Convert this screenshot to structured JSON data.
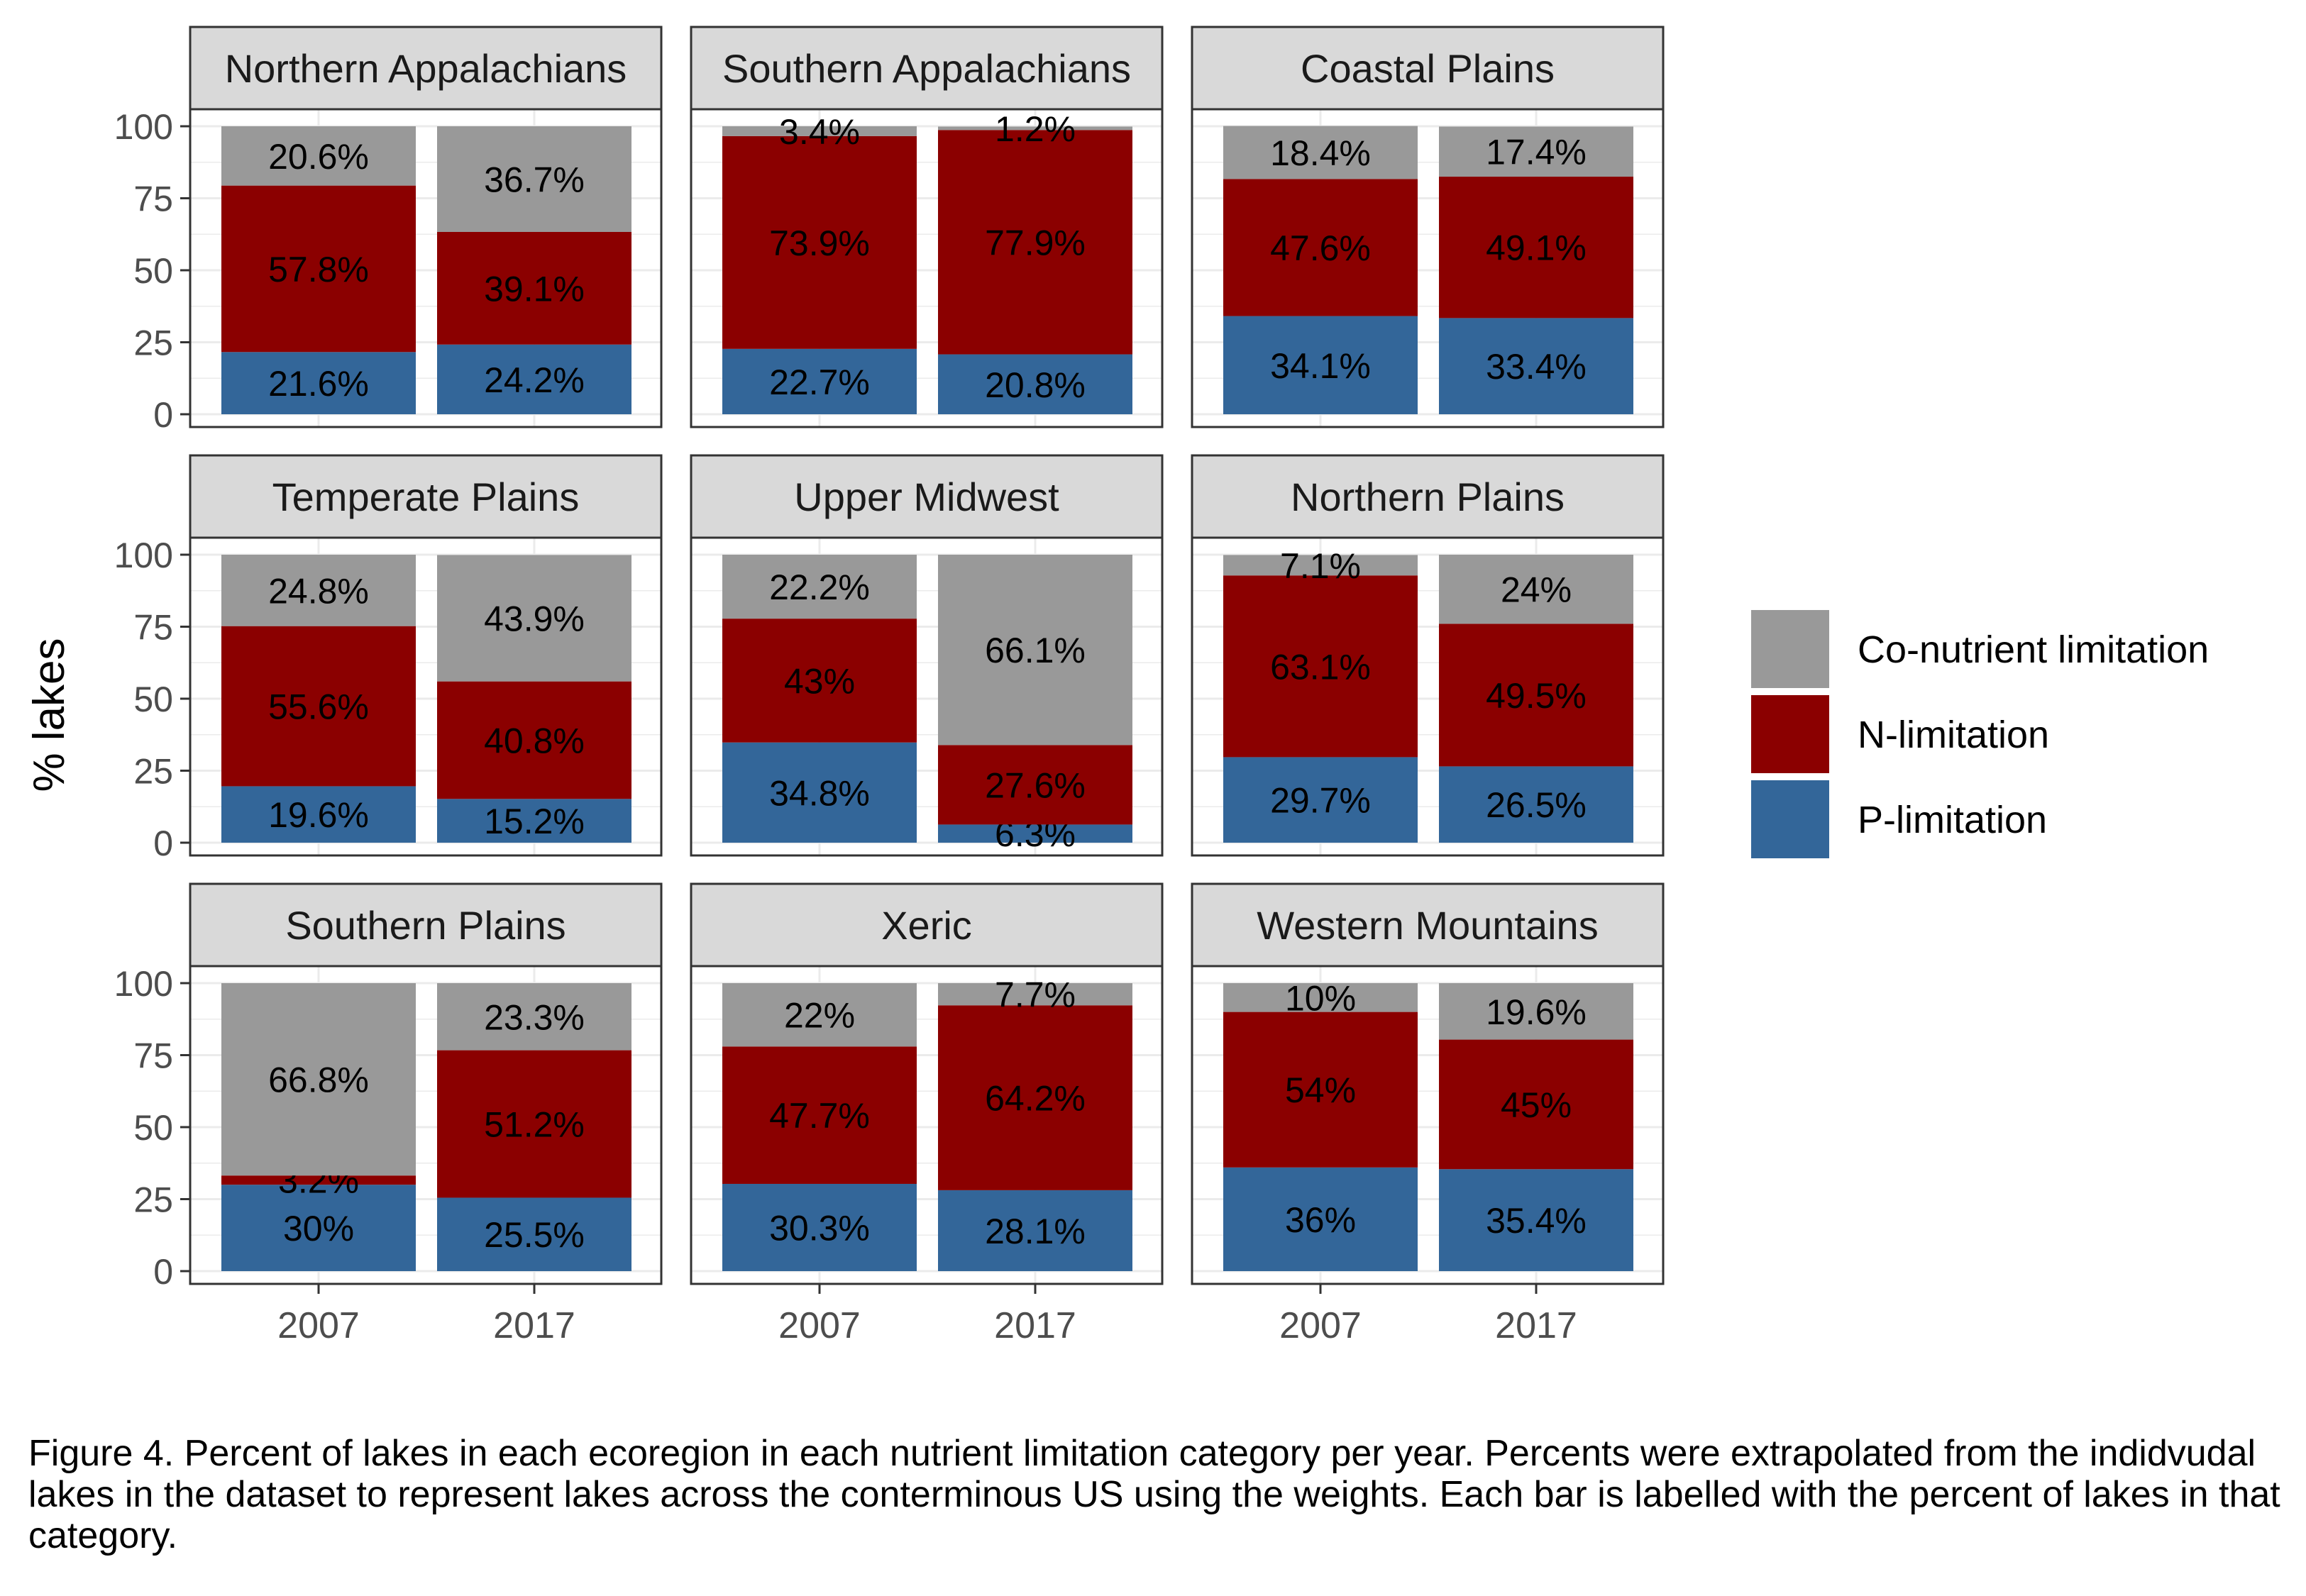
{
  "chart_data": {
    "type": "bar",
    "stacked": true,
    "ylabel": "% lakes",
    "ylim": [
      0,
      100
    ],
    "yticks": [
      0,
      25,
      50,
      75,
      100
    ],
    "categories": [
      "2007",
      "2017"
    ],
    "grid": true,
    "legend_position": "right",
    "legend": [
      {
        "name": "Co-nutrient limitation",
        "color": "#999999"
      },
      {
        "name": "N-limitation",
        "color": "#8b0000"
      },
      {
        "name": "P-limitation",
        "color": "#336699"
      }
    ],
    "series_colors": {
      "P": "#336699",
      "N": "#8b0000",
      "Co": "#999999"
    },
    "panels": [
      {
        "title": "Northern Appalachians",
        "bars": [
          {
            "year": "2007",
            "P": 21.6,
            "N": 57.8,
            "Co": 20.6,
            "labels": {
              "P": "21.6%",
              "N": "57.8%",
              "Co": "20.6%"
            }
          },
          {
            "year": "2017",
            "P": 24.2,
            "N": 39.1,
            "Co": 36.7,
            "labels": {
              "P": "24.2%",
              "N": "39.1%",
              "Co": "36.7%"
            }
          }
        ]
      },
      {
        "title": "Southern Appalachians",
        "bars": [
          {
            "year": "2007",
            "P": 22.7,
            "N": 73.9,
            "Co": 3.4,
            "labels": {
              "P": "22.7%",
              "N": "73.9%",
              "Co": "3.4%"
            }
          },
          {
            "year": "2017",
            "P": 20.8,
            "N": 77.9,
            "Co": 1.2,
            "labels": {
              "P": "20.8%",
              "N": "77.9%",
              "Co": "1.2%"
            }
          }
        ]
      },
      {
        "title": "Coastal Plains",
        "bars": [
          {
            "year": "2007",
            "P": 34.1,
            "N": 47.6,
            "Co": 18.4,
            "labels": {
              "P": "34.1%",
              "N": "47.6%",
              "Co": "18.4%"
            }
          },
          {
            "year": "2017",
            "P": 33.4,
            "N": 49.1,
            "Co": 17.4,
            "labels": {
              "P": "33.4%",
              "N": "49.1%",
              "Co": "17.4%"
            }
          }
        ]
      },
      {
        "title": "Temperate Plains",
        "bars": [
          {
            "year": "2007",
            "P": 19.6,
            "N": 55.6,
            "Co": 24.8,
            "labels": {
              "P": "19.6%",
              "N": "55.6%",
              "Co": "24.8%"
            }
          },
          {
            "year": "2017",
            "P": 15.2,
            "N": 40.8,
            "Co": 43.9,
            "labels": {
              "P": "15.2%",
              "N": "40.8%",
              "Co": "43.9%"
            }
          }
        ]
      },
      {
        "title": "Upper Midwest",
        "bars": [
          {
            "year": "2007",
            "P": 34.8,
            "N": 43,
            "Co": 22.2,
            "labels": {
              "P": "34.8%",
              "N": "43%",
              "Co": "22.2%"
            }
          },
          {
            "year": "2017",
            "P": 6.3,
            "N": 27.6,
            "Co": 66.1,
            "labels": {
              "P": "6.3%",
              "N": "27.6%",
              "Co": "66.1%"
            }
          }
        ]
      },
      {
        "title": "Northern Plains",
        "bars": [
          {
            "year": "2007",
            "P": 29.7,
            "N": 63.1,
            "Co": 7.1,
            "labels": {
              "P": "29.7%",
              "N": "63.1%",
              "Co": "7.1%"
            }
          },
          {
            "year": "2017",
            "P": 26.5,
            "N": 49.5,
            "Co": 24,
            "labels": {
              "P": "26.5%",
              "N": "49.5%",
              "Co": "24%"
            }
          }
        ]
      },
      {
        "title": "Southern Plains",
        "bars": [
          {
            "year": "2007",
            "P": 30,
            "N": 3.2,
            "Co": 66.8,
            "labels": {
              "P": "30%",
              "N": "3.2%",
              "Co": "66.8%"
            }
          },
          {
            "year": "2017",
            "P": 25.5,
            "N": 51.2,
            "Co": 23.3,
            "labels": {
              "P": "25.5%",
              "N": "51.2%",
              "Co": "23.3%"
            }
          }
        ]
      },
      {
        "title": "Xeric",
        "bars": [
          {
            "year": "2007",
            "P": 30.3,
            "N": 47.7,
            "Co": 22,
            "labels": {
              "P": "30.3%",
              "N": "47.7%",
              "Co": "22%"
            }
          },
          {
            "year": "2017",
            "P": 28.1,
            "N": 64.2,
            "Co": 7.7,
            "labels": {
              "P": "28.1%",
              "N": "64.2%",
              "Co": "7.7%"
            }
          }
        ]
      },
      {
        "title": "Western Mountains",
        "bars": [
          {
            "year": "2007",
            "P": 36,
            "N": 54,
            "Co": 10,
            "labels": {
              "P": "36%",
              "N": "54%",
              "Co": "10%"
            }
          },
          {
            "year": "2017",
            "P": 35.4,
            "N": 45,
            "Co": 19.6,
            "labels": {
              "P": "35.4%",
              "N": "45%",
              "Co": "19.6%"
            }
          }
        ]
      }
    ]
  },
  "caption": "Figure 4. Percent of lakes in each ecoregion in each nutrient limitation category per year. Percents were extrapolated from the indidvudal lakes in the dataset to represent lakes across the conterminous US using the weights. Each bar is labelled with the percent of lakes in that category."
}
